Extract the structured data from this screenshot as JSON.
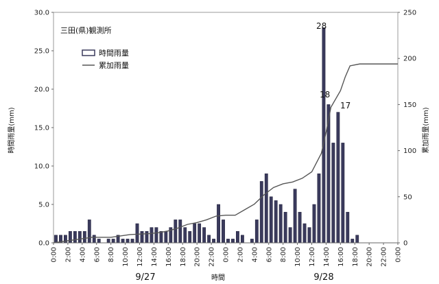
{
  "chart_data": {
    "type": "bar",
    "station_label": "三田(県)観測所",
    "xlabel": "時間",
    "ylabel_left": "時間雨量(mm)",
    "ylabel_right": "累加雨量(mm)",
    "ylim_left": [
      0,
      30
    ],
    "ylim_right": [
      0,
      250
    ],
    "y_ticks_left": [
      "0.0",
      "5.0",
      "10.0",
      "15.0",
      "20.0",
      "25.0",
      "30.0"
    ],
    "y_ticks_right": [
      "0",
      "50",
      "100",
      "150",
      "200",
      "250"
    ],
    "x_tick_labels": [
      "0:00",
      "2:00",
      "4:00",
      "6:00",
      "8:00",
      "10:00",
      "12:00",
      "14:00",
      "16:00",
      "18:00",
      "20:00",
      "22:00",
      "0:00",
      "2:00",
      "4:00",
      "6:00",
      "8:00",
      "10:00",
      "12:00",
      "14:00",
      "16:00",
      "18:00",
      "20:00",
      "22:00",
      "0:00"
    ],
    "date_labels": [
      "9/27",
      "9/28"
    ],
    "grid": false,
    "legend_position": "top-left",
    "series": [
      {
        "name": "時間雨量",
        "kind": "bar",
        "color": "#3a3a5c",
        "values": [
          1,
          1,
          1,
          1.5,
          1.5,
          1.5,
          1.5,
          3,
          1,
          0.5,
          0,
          0.5,
          0.5,
          1,
          0.5,
          0.5,
          0.5,
          2.5,
          1.5,
          1.5,
          2,
          2,
          1.5,
          1.5,
          2,
          3,
          3,
          2,
          1.5,
          2.5,
          2.5,
          2,
          1,
          0.5,
          5,
          3,
          0.5,
          0.5,
          1.5,
          1,
          0,
          0.5,
          3,
          8,
          9,
          6,
          5.5,
          5,
          4,
          2,
          7,
          4,
          2.5,
          2,
          5,
          9,
          28,
          18,
          13,
          17,
          13,
          4,
          0.5,
          1,
          0,
          0,
          0,
          0,
          0,
          0,
          0,
          0
        ]
      },
      {
        "name": "累加雨量",
        "kind": "line",
        "axis": "right",
        "color": "#555555",
        "x": [
          0,
          8,
          12,
          16,
          20,
          22,
          24,
          26,
          28,
          30,
          32,
          34,
          36,
          38,
          40,
          42,
          44,
          46,
          48,
          50,
          52,
          54,
          56,
          57,
          58,
          60,
          61,
          62,
          64,
          68,
          72
        ],
        "values": [
          0,
          6,
          6,
          9,
          10,
          11,
          13,
          16,
          20,
          22,
          25,
          29,
          30,
          30,
          36,
          42,
          52,
          60,
          64,
          66,
          70,
          77,
          97,
          120,
          147,
          165,
          180,
          192,
          194,
          194,
          194
        ]
      }
    ],
    "annotations": [
      "28",
      "18",
      "17"
    ]
  }
}
